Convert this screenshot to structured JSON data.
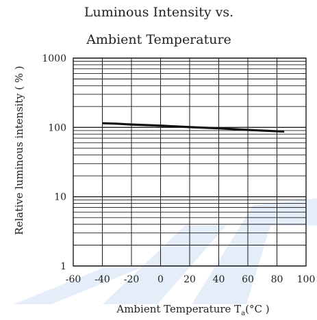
{
  "chart_data": {
    "type": "line",
    "title_line1": "Luminous Intensity vs.",
    "title_line2": "Ambient Temperature",
    "xlabel_main": "Ambient Temperature T",
    "xlabel_sub": "a",
    "xlabel_unit": "(°C )",
    "ylabel": "Relative luminous intensity ( % )",
    "xlim": [
      -60,
      100
    ],
    "ylim": [
      1,
      1000
    ],
    "yscale": "log",
    "grid": true,
    "x_ticks": [
      -60,
      -40,
      -20,
      0,
      20,
      40,
      60,
      80,
      100
    ],
    "x_tick_labels": [
      "-60",
      "-40",
      "-20",
      "0",
      "20",
      "40",
      "60",
      "80",
      "100"
    ],
    "y_ticks": [
      1,
      10,
      100,
      1000
    ],
    "y_tick_labels": [
      "1",
      "10",
      "100",
      "1000"
    ],
    "series": [
      {
        "x": [
          -40,
          -30,
          -20,
          0,
          20,
          40,
          60,
          80,
          85
        ],
        "y": [
          115,
          113,
          110,
          106,
          101,
          97,
          92,
          88,
          87
        ]
      }
    ],
    "colors": {
      "grid": "#1a1a1a",
      "line": "#111111",
      "watermark": "#cfe0f3"
    }
  }
}
